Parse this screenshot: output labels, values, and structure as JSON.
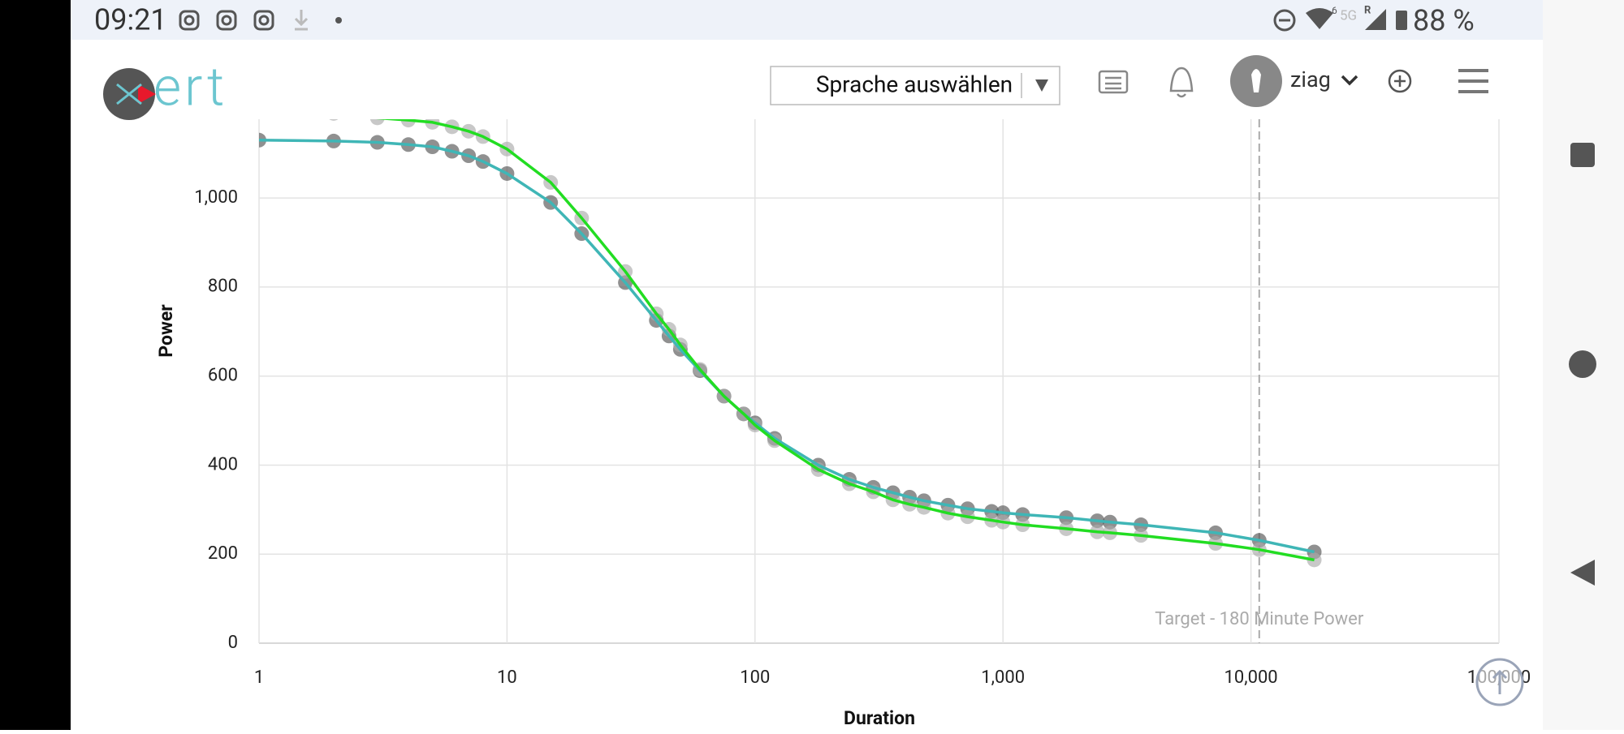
{
  "status_bar": {
    "time": "09:21",
    "wifi_badge": "6",
    "network": "5G",
    "roaming": "R",
    "battery": "88 %"
  },
  "header": {
    "logo": "ert",
    "language_select": "Sprache auswählen",
    "username": "ziag"
  },
  "chart_data": {
    "type": "line",
    "xlabel": "Duration",
    "ylabel": "Power",
    "xscale": "log",
    "xlim": [
      1,
      100000
    ],
    "ylim": [
      0,
      1177
    ],
    "xticks": [
      1,
      10,
      100,
      {
        "value": 1000,
        "label": "1,000"
      },
      {
        "value": 10000,
        "label": "10,000"
      },
      {
        "value": 100000,
        "label": "100,000"
      }
    ],
    "yticks": [
      0,
      200,
      400,
      600,
      800,
      {
        "value": 1000,
        "label": "1,000"
      }
    ],
    "grid": true,
    "x": [
      1,
      2,
      3,
      4,
      5,
      6,
      7,
      8,
      10,
      15,
      20,
      30,
      40,
      45,
      50,
      60,
      75,
      90,
      100,
      120,
      180,
      240,
      300,
      360,
      420,
      480,
      600,
      720,
      900,
      1000,
      1200,
      1800,
      2400,
      2700,
      3600,
      7200,
      10800,
      18000
    ],
    "series": [
      {
        "color": "#3fb6b6",
        "marker_color": "#555555",
        "values": [
          1130,
          1128,
          1125,
          1120,
          1115,
          1105,
          1095,
          1082,
          1055,
          990,
          920,
          810,
          725,
          690,
          660,
          612,
          555,
          515,
          495,
          460,
          400,
          368,
          350,
          338,
          328,
          320,
          310,
          302,
          296,
          293,
          289,
          282,
          275,
          272,
          266,
          248,
          231,
          205
        ]
      },
      {
        "color": "#22dd22",
        "marker_color": "#aaaaaa",
        "values": [
          1195,
          1190,
          1180,
          1175,
          1170,
          1160,
          1150,
          1138,
          1110,
          1035,
          955,
          835,
          740,
          705,
          670,
          615,
          555,
          515,
          490,
          455,
          390,
          358,
          340,
          322,
          312,
          305,
          292,
          284,
          276,
          272,
          266,
          257,
          250,
          248,
          242,
          224,
          210,
          187
        ]
      }
    ],
    "target_line": {
      "x": 10800,
      "label": "Target - 180 Minute Power",
      "color": "#aaaaaa"
    }
  }
}
